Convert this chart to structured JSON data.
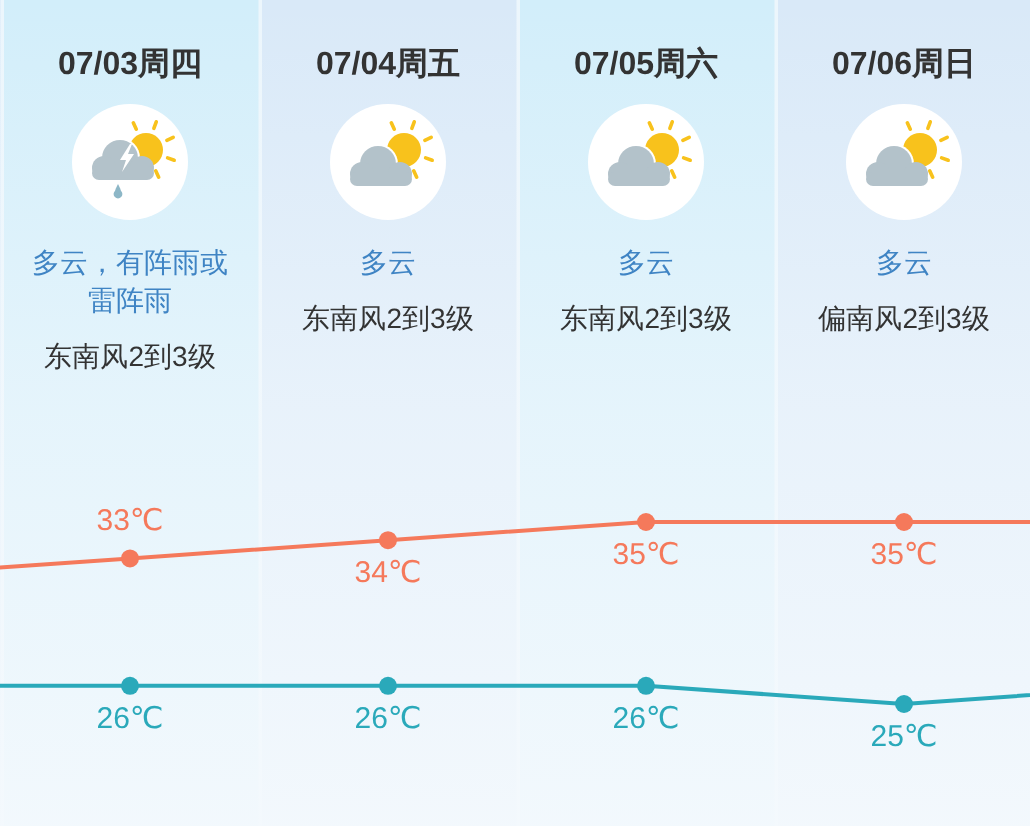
{
  "chart_data": {
    "type": "line",
    "tick_labels": "x",
    "categories": [
      null,
      "07/03周四",
      "07/04周五",
      "07/05周六",
      "07/06周日",
      null
    ],
    "series": [
      {
        "color": "#f5795b",
        "values": [
          32,
          33,
          34,
          35,
          35,
          35
        ],
        "value_labels": [
          null,
          "33℃",
          "34℃",
          "35℃",
          "35℃",
          null
        ]
      },
      {
        "color": "#2aa9ba",
        "values": [
          26,
          26,
          26,
          26,
          25,
          26
        ],
        "value_labels": [
          null,
          "26℃",
          "26℃",
          "26℃",
          "25℃",
          null
        ]
      }
    ],
    "marker": "circle",
    "line_style": "solid",
    "annotations": [
      "多云，有阵雨或雷阵雨",
      "东南风2到3级",
      "多云",
      "东南风2到3级",
      "多云",
      "东南风2到3级",
      "多云",
      "偏南风2到3级"
    ]
  }
}
